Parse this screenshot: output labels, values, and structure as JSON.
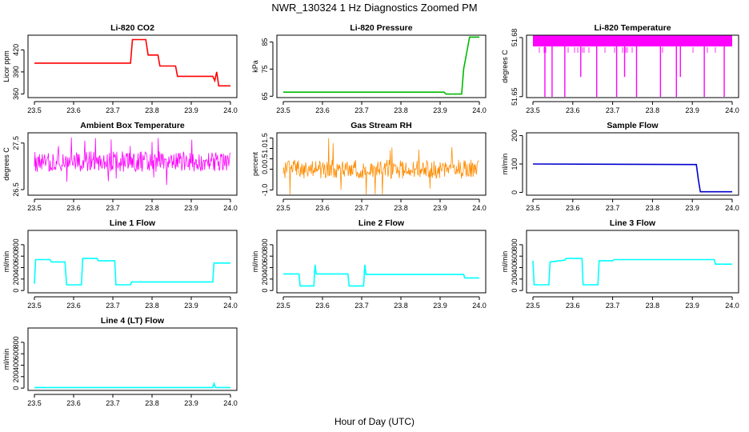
{
  "figure": {
    "title": "NWR_130324  1 Hz Diagnostics Zoomed PM",
    "xlabel": "Hour of Day (UTC)"
  },
  "chart_data": [
    {
      "type": "line",
      "title": "Li-820 CO2",
      "ylabel": "Licor ppm",
      "color": "#ff0000",
      "xlim": [
        23.5,
        24.0
      ],
      "xticks": [
        "23.5",
        "23.6",
        "23.7",
        "23.8",
        "23.9",
        "24.0"
      ],
      "ylim": [
        355,
        440
      ],
      "yticks": [
        "360",
        "390",
        "420"
      ],
      "ytick_values": [
        360,
        390,
        420
      ],
      "series": [
        {
          "x": [
            23.5,
            23.745,
            23.75,
            23.784,
            23.79,
            23.815,
            23.82,
            23.86,
            23.865,
            23.955,
            23.96,
            23.965,
            23.97,
            24.0
          ],
          "y": [
            402,
            402,
            434,
            434,
            413,
            413,
            398,
            398,
            384,
            384,
            378,
            390,
            371,
            371
          ]
        }
      ]
    },
    {
      "type": "line",
      "title": "Li-820 Pressure",
      "ylabel": "kPa",
      "color": "#00bb00",
      "xlim": [
        23.5,
        24.0
      ],
      "xticks": [
        "23.5",
        "23.6",
        "23.7",
        "23.8",
        "23.9",
        "24.0"
      ],
      "ylim": [
        64.5,
        87.5
      ],
      "yticks": [
        "65",
        "75",
        "85"
      ],
      "ytick_values": [
        65,
        75,
        85
      ],
      "series": [
        {
          "x": [
            23.5,
            23.91,
            23.915,
            23.955,
            23.96,
            23.975,
            24.0
          ],
          "y": [
            66.5,
            66.5,
            65.8,
            65.8,
            75.0,
            86.8,
            86.8
          ]
        }
      ]
    },
    {
      "type": "line",
      "title": "Li-820 Temperature",
      "ylabel": "degrees C",
      "color": "#ff00ff",
      "xlim": [
        23.5,
        24.0
      ],
      "xticks": [
        "23.5",
        "23.6",
        "23.7",
        "23.8",
        "23.9",
        "24.0"
      ],
      "ylim": [
        51.6495,
        51.6812
      ],
      "yticks": [
        "51.65",
        "51.68"
      ],
      "ytick_values": [
        51.65,
        51.68
      ],
      "band": [
        51.6755,
        51.6812
      ],
      "dips": [
        {
          "x": 23.53,
          "y": 51.6496
        },
        {
          "x": 23.548,
          "y": 51.6496
        },
        {
          "x": 23.58,
          "y": 51.6496
        },
        {
          "x": 23.62,
          "y": 51.66
        },
        {
          "x": 23.66,
          "y": 51.6496
        },
        {
          "x": 23.71,
          "y": 51.6496
        },
        {
          "x": 23.73,
          "y": 51.66
        },
        {
          "x": 23.76,
          "y": 51.6496
        },
        {
          "x": 23.82,
          "y": 51.6496
        },
        {
          "x": 23.86,
          "y": 51.6496
        },
        {
          "x": 23.87,
          "y": 51.66
        },
        {
          "x": 23.93,
          "y": 51.6496
        },
        {
          "x": 23.98,
          "y": 51.6496
        }
      ]
    },
    {
      "type": "line",
      "title": "Ambient Box Temperature",
      "ylabel": "degrees C",
      "color": "#ff00ff",
      "xlim": [
        23.5,
        24.0
      ],
      "xticks": [
        "23.5",
        "23.6",
        "23.7",
        "23.8",
        "23.9",
        "24.0"
      ],
      "ylim": [
        26.38,
        27.72
      ],
      "yticks": [
        "26.5",
        "27.5"
      ],
      "ytick_values": [
        26.5,
        27.5
      ],
      "noise": {
        "center": 27.1,
        "amplitude": 0.22,
        "spike": 0.55
      }
    },
    {
      "type": "line",
      "title": "Gas Stream RH",
      "ylabel": "percent",
      "color": "#ff8c00",
      "xlim": [
        23.5,
        24.0
      ],
      "xticks": [
        "23.5",
        "23.6",
        "23.7",
        "23.8",
        "23.9",
        "24.0"
      ],
      "ylim": [
        -1.25,
        1.75
      ],
      "yticks": [
        "-1.0",
        "0.0",
        "0.5",
        "1.0",
        "1.5"
      ],
      "ytick_values": [
        -1.0,
        0.0,
        0.5,
        1.0,
        1.5
      ],
      "noise": {
        "center": 0.0,
        "amplitude": 0.45,
        "spike": 1.5
      }
    },
    {
      "type": "line",
      "title": "Sample Flow",
      "ylabel": "ml/min",
      "color": "#0000cc",
      "xlim": [
        23.5,
        24.0
      ],
      "xticks": [
        "23.5",
        "23.6",
        "23.7",
        "23.8",
        "23.9",
        "24.0"
      ],
      "ylim": [
        -10,
        210
      ],
      "yticks": [
        "0",
        "100",
        "200"
      ],
      "ytick_values": [
        0,
        100,
        200
      ],
      "series": [
        {
          "x": [
            23.5,
            23.91,
            23.915,
            23.92,
            24.0
          ],
          "y": [
            100,
            98,
            45,
            2,
            2
          ]
        }
      ]
    },
    {
      "type": "line",
      "title": "Line 1 Flow",
      "ylabel": "ml/min",
      "color": "#00ffff",
      "xlim": [
        23.5,
        24.0
      ],
      "xticks": [
        "23.5",
        "23.6",
        "23.7",
        "23.8",
        "23.9",
        "24.0"
      ],
      "ylim": [
        -40,
        1050
      ],
      "yticks": [
        "0",
        "200",
        "400",
        "600",
        "800"
      ],
      "ytick_values": [
        0,
        200,
        400,
        600,
        800
      ],
      "series": [
        {
          "x": [
            23.5,
            23.503,
            23.54,
            23.543,
            23.578,
            23.582,
            23.62,
            23.623,
            23.66,
            23.663,
            23.705,
            23.708,
            23.745,
            23.748,
            23.955,
            23.958,
            24.0
          ],
          "y": [
            120,
            540,
            540,
            500,
            500,
            100,
            100,
            560,
            560,
            520,
            520,
            100,
            100,
            150,
            150,
            480,
            480
          ]
        }
      ]
    },
    {
      "type": "line",
      "title": "Line 2 Flow",
      "ylabel": "ml/min",
      "color": "#00ffff",
      "xlim": [
        23.5,
        24.0
      ],
      "xticks": [
        "23.5",
        "23.6",
        "23.7",
        "23.8",
        "23.9",
        "24.0"
      ],
      "ylim": [
        -40,
        1050
      ],
      "yticks": [
        "0",
        "200",
        "400",
        "600",
        "800"
      ],
      "ytick_values": [
        0,
        200,
        400,
        600,
        800
      ],
      "series": [
        {
          "x": [
            23.5,
            23.54,
            23.543,
            23.578,
            23.581,
            23.584,
            23.665,
            23.668,
            23.705,
            23.708,
            23.711,
            23.96,
            23.963,
            24.0
          ],
          "y": [
            290,
            290,
            80,
            80,
            450,
            290,
            290,
            80,
            80,
            450,
            280,
            280,
            220,
            220
          ]
        }
      ]
    },
    {
      "type": "line",
      "title": "Line 3 Flow",
      "ylabel": "ml/min",
      "color": "#00ffff",
      "xlim": [
        23.5,
        24.0
      ],
      "xticks": [
        "23.5",
        "23.6",
        "23.7",
        "23.8",
        "23.9",
        "24.0"
      ],
      "ylim": [
        -40,
        1050
      ],
      "yticks": [
        "0",
        "200",
        "400",
        "600",
        "800"
      ],
      "ytick_values": [
        0,
        200,
        400,
        600,
        800
      ],
      "series": [
        {
          "x": [
            23.5,
            23.503,
            23.506,
            23.54,
            23.543,
            23.58,
            23.583,
            23.623,
            23.626,
            23.663,
            23.666,
            23.7,
            23.703,
            23.955,
            23.958,
            24.0
          ],
          "y": [
            520,
            100,
            100,
            100,
            500,
            530,
            560,
            560,
            100,
            100,
            520,
            520,
            540,
            540,
            460,
            460
          ]
        }
      ]
    },
    {
      "type": "line",
      "title": "Line 4 (LT) Flow",
      "ylabel": "ml/min",
      "color": "#00ffff",
      "xlim": [
        23.5,
        24.0
      ],
      "xticks": [
        "23.5",
        "23.6",
        "23.7",
        "23.8",
        "23.9",
        "24.0"
      ],
      "ylim": [
        -40,
        1050
      ],
      "yticks": [
        "0",
        "200",
        "400",
        "600",
        "800"
      ],
      "ytick_values": [
        0,
        200,
        400,
        600,
        800
      ],
      "series": [
        {
          "x": [
            23.5,
            23.955,
            23.958,
            23.962,
            24.0
          ],
          "y": [
            10,
            10,
            80,
            10,
            10
          ]
        }
      ]
    }
  ]
}
